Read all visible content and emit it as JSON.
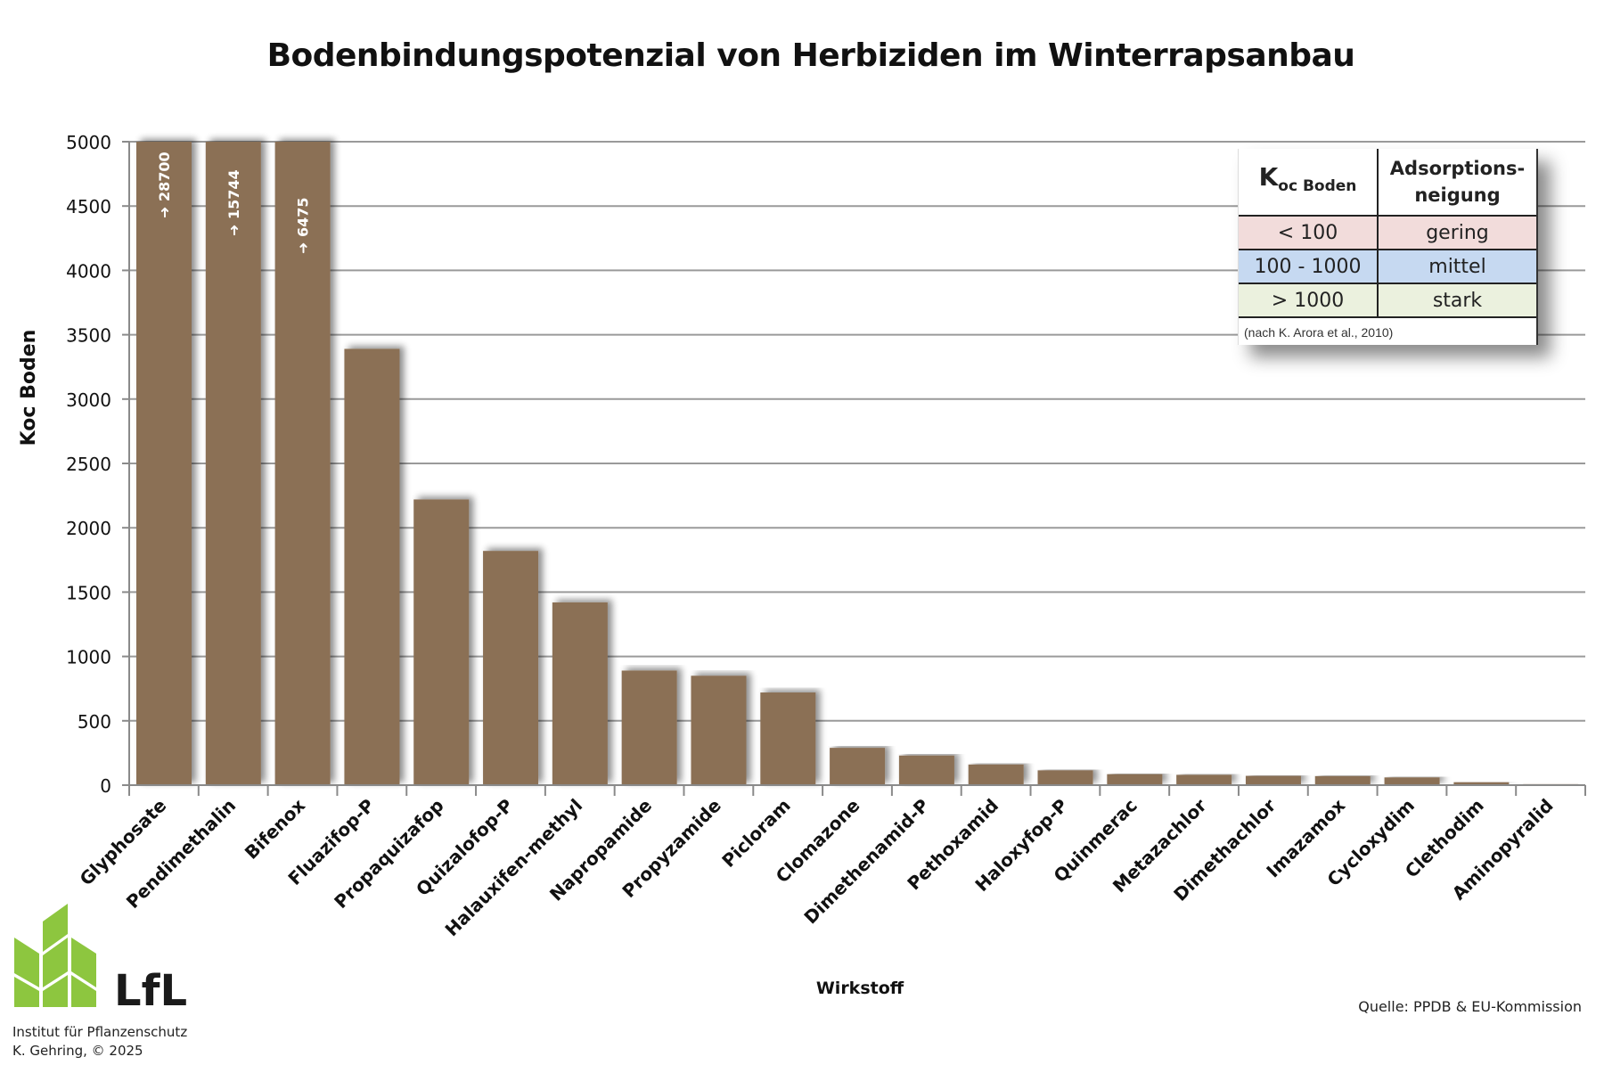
{
  "chart_data": {
    "type": "bar",
    "title": "Bodenbindungspotenzial von Herbiziden im Winterrapsanbau",
    "xlabel": "Wirkstoff",
    "ylabel": "Koc Boden",
    "ylim": [
      0,
      5000
    ],
    "yticks": [
      0,
      500,
      1000,
      1500,
      2000,
      2500,
      3000,
      3500,
      4000,
      4500,
      5000
    ],
    "grid": true,
    "bar_color": "#8b6f54",
    "categories": [
      "Glyphosate",
      "Pendimethalin",
      "Bifenox",
      "Fluazifop-P",
      "Propaquizafop",
      "Quizalofop-P",
      "Halauxifen-methyl",
      "Napropamide",
      "Propyzamide",
      "Picloram",
      "Clomazone",
      "Dimethenamid-P",
      "Pethoxamid",
      "Haloxyfop-P",
      "Quinmerac",
      "Metazachlor",
      "Dimethachlor",
      "Imazamox",
      "Cycloxydim",
      "Clethodim",
      "Aminopyralid"
    ],
    "values": [
      28700,
      15744,
      6475,
      3390,
      2220,
      1820,
      1420,
      890,
      850,
      720,
      290,
      230,
      160,
      115,
      85,
      80,
      72,
      70,
      60,
      23,
      8
    ],
    "overflow_labels": [
      {
        "category": "Glyphosate",
        "text": "➜ 28700"
      },
      {
        "category": "Pendimethalin",
        "text": "➜ 15744"
      },
      {
        "category": "Bifenox",
        "text": "➜ 6475"
      }
    ]
  },
  "legend_table": {
    "header": {
      "col1_main": "K",
      "col1_sub": "oc Boden",
      "col2_line1": "Adsorptions-",
      "col2_line2": "neigung"
    },
    "rows": [
      {
        "range": "< 100",
        "class": "gering",
        "color": "#f2dcdb"
      },
      {
        "range": "100 - 1000",
        "class": "mittel",
        "color": "#c6d9f1"
      },
      {
        "range": "> 1000",
        "class": "stark",
        "color": "#ebf1de"
      }
    ],
    "note": "(nach K. Arora et al., 2010)"
  },
  "source": "Quelle: PPDB & EU-Kommission",
  "logo": {
    "text": "LfL",
    "color": "#8dc63f"
  },
  "institute": {
    "line1": "Institut für Pflanzenschutz",
    "line2": "K. Gehring, © 2025"
  }
}
